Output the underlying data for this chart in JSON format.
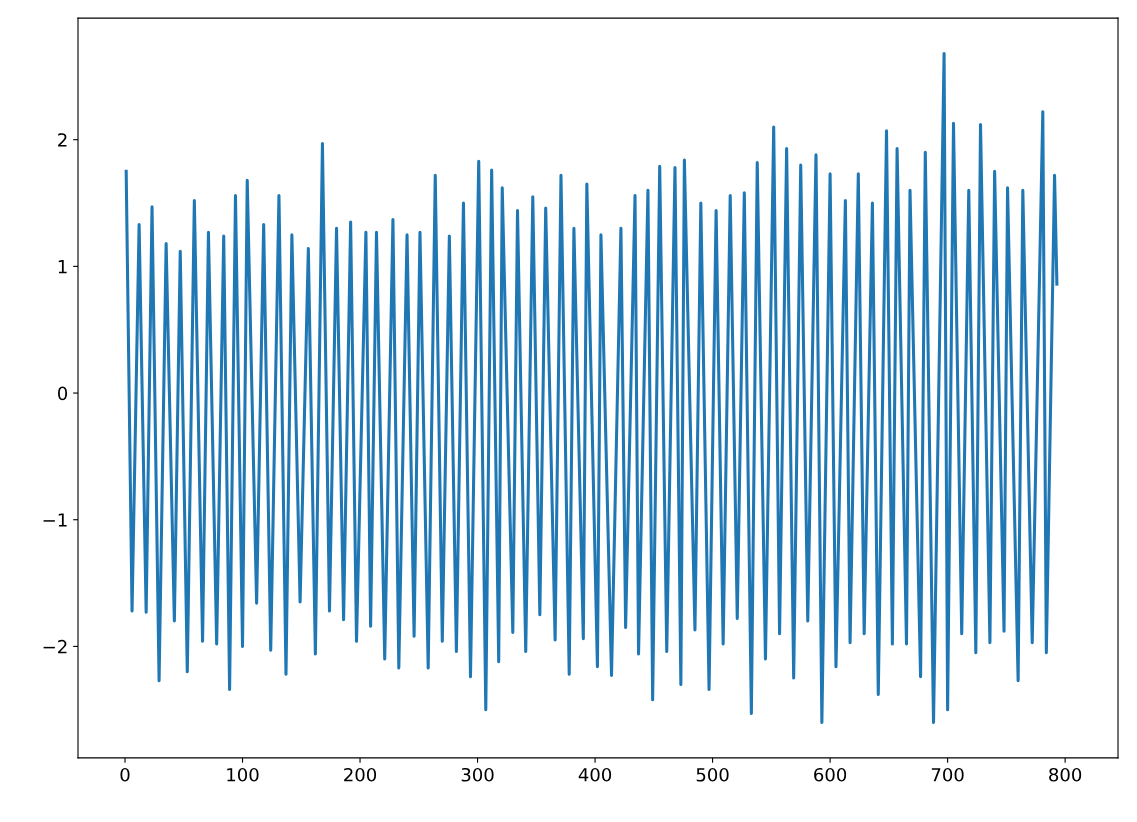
{
  "chart_data": {
    "type": "line",
    "x": [
      1,
      6,
      12,
      18,
      23,
      29,
      35,
      42,
      47,
      53,
      59,
      66,
      71,
      78,
      84,
      89,
      94,
      100,
      104,
      112,
      118,
      124,
      131,
      137,
      142,
      149,
      156,
      162,
      168,
      174,
      180,
      186,
      192,
      197,
      205,
      209,
      214,
      221,
      228,
      233,
      240,
      246,
      251,
      258,
      264,
      270,
      276,
      282,
      288,
      294,
      301,
      307,
      312,
      318,
      321,
      330,
      334,
      341,
      347,
      353,
      358,
      366,
      371,
      378,
      382,
      390,
      393,
      402,
      405,
      414,
      422,
      426,
      434,
      437,
      445,
      449,
      455,
      461,
      468,
      473,
      476,
      485,
      490,
      497,
      503,
      509,
      515,
      521,
      527,
      533,
      538,
      545,
      552,
      557,
      563,
      569,
      575,
      581,
      588,
      593,
      600,
      605,
      613,
      617,
      624,
      629,
      636,
      641,
      648,
      653,
      657,
      665,
      668,
      677,
      681,
      688,
      697,
      700,
      705,
      712,
      718,
      724,
      728,
      736,
      740,
      748,
      751,
      760,
      764,
      772,
      781,
      784,
      791,
      793
    ],
    "series": [
      {
        "color": "#1f77b4",
        "values": [
          1.75,
          -1.72,
          1.33,
          -1.73,
          1.47,
          -2.27,
          1.18,
          -1.8,
          1.12,
          -2.2,
          1.52,
          -1.96,
          1.27,
          -1.98,
          1.24,
          -2.34,
          1.56,
          -2.0,
          1.68,
          -1.66,
          1.33,
          -2.03,
          1.56,
          -2.22,
          1.25,
          -1.65,
          1.14,
          -2.06,
          1.97,
          -1.72,
          1.3,
          -1.79,
          1.35,
          -1.96,
          1.27,
          -1.84,
          1.27,
          -2.1,
          1.37,
          -2.17,
          1.25,
          -1.92,
          1.27,
          -2.17,
          1.72,
          -1.96,
          1.24,
          -2.04,
          1.5,
          -2.24,
          1.83,
          -2.5,
          1.76,
          -2.12,
          1.62,
          -1.89,
          1.44,
          -2.04,
          1.55,
          -1.75,
          1.46,
          -1.95,
          1.72,
          -2.22,
          1.3,
          -1.94,
          1.65,
          -2.16,
          1.25,
          -2.23,
          1.3,
          -1.85,
          1.56,
          -2.06,
          1.6,
          -2.42,
          1.79,
          -2.04,
          1.78,
          -2.3,
          1.84,
          -1.87,
          1.5,
          -2.34,
          1.44,
          -1.98,
          1.56,
          -1.78,
          1.58,
          -2.53,
          1.82,
          -2.1,
          2.1,
          -1.9,
          1.93,
          -2.25,
          1.8,
          -1.8,
          1.88,
          -2.6,
          1.73,
          -2.16,
          1.52,
          -1.97,
          1.73,
          -1.9,
          1.5,
          -2.38,
          2.07,
          -1.98,
          1.93,
          -1.98,
          1.6,
          -2.24,
          1.9,
          -2.6,
          2.68,
          -2.5,
          2.13,
          -1.9,
          1.6,
          -2.05,
          2.12,
          -1.97,
          1.75,
          -1.88,
          1.62,
          -2.27,
          1.6,
          -1.97,
          2.22,
          -2.05,
          1.72,
          0.86
        ]
      }
    ],
    "xlim": [
      -40,
      845
    ],
    "ylim": [
      -2.88,
      2.96
    ],
    "xticks": [
      0,
      100,
      200,
      300,
      400,
      500,
      600,
      700,
      800
    ],
    "yticks": [
      {
        "value": -2,
        "label": "−2"
      },
      {
        "value": -1,
        "label": "−1"
      },
      0,
      1,
      2
    ],
    "grid": false,
    "legend": false
  }
}
